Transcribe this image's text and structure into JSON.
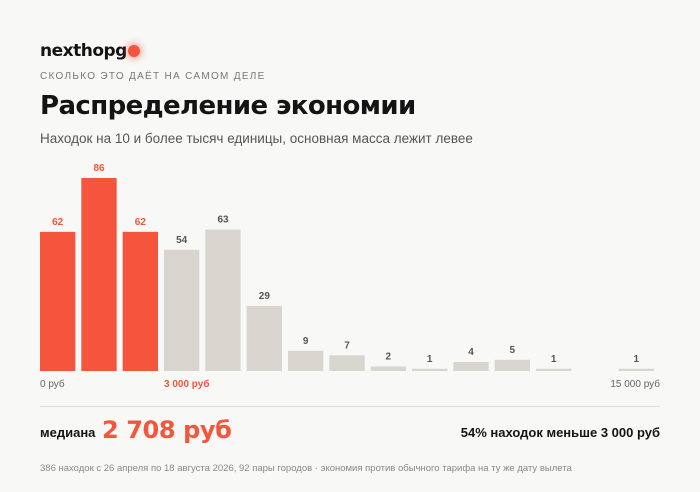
{
  "brand": {
    "name": "nexthopg"
  },
  "header": {
    "kicker": "СКОЛЬКО ЭТО ДАЁТ НА САМОМ ДЕЛЕ",
    "title": "Распределение экономии",
    "subtitle": "Находок на 10 и более тысяч единицы, основная масса лежит левее"
  },
  "colors": {
    "accent": "#f4553c",
    "muted_bar": "#d8d4ce",
    "muted_label": "#555555"
  },
  "chart_data": {
    "type": "bar",
    "categories": [
      "1",
      "2",
      "3",
      "4",
      "5",
      "6",
      "7",
      "8",
      "9",
      "10",
      "11",
      "12",
      "13",
      "14",
      "15"
    ],
    "values": [
      62,
      86,
      62,
      54,
      63,
      29,
      9,
      7,
      2,
      1,
      4,
      5,
      1,
      0,
      1
    ],
    "value_labels": [
      "62",
      "86",
      "62",
      "54",
      "63",
      "29",
      "9",
      "7",
      "2",
      "1",
      "4",
      "5",
      "1",
      "",
      "1"
    ],
    "highlighted": [
      true,
      true,
      true,
      false,
      false,
      false,
      false,
      false,
      false,
      false,
      false,
      false,
      false,
      false,
      false
    ],
    "ylim": [
      0,
      86
    ],
    "x_tick_labels": [
      {
        "text": "0 руб",
        "bin": 0,
        "align": "start",
        "accent": false
      },
      {
        "text": "3 000 руб",
        "bin": 3,
        "align": "start",
        "accent": true
      },
      {
        "text": "15 000 руб",
        "bin": 15,
        "align": "end",
        "accent": false
      }
    ],
    "grid": false,
    "legend": "none"
  },
  "stats": {
    "median_label": "медиана",
    "median_value": "2 708 руб",
    "share_text": "54% находок меньше 3 000 руб"
  },
  "footnote": "386 находок с 26 апреля по 18 августа 2026, 92 пары городов · экономия против обычного тарифа на ту же дату вылета"
}
